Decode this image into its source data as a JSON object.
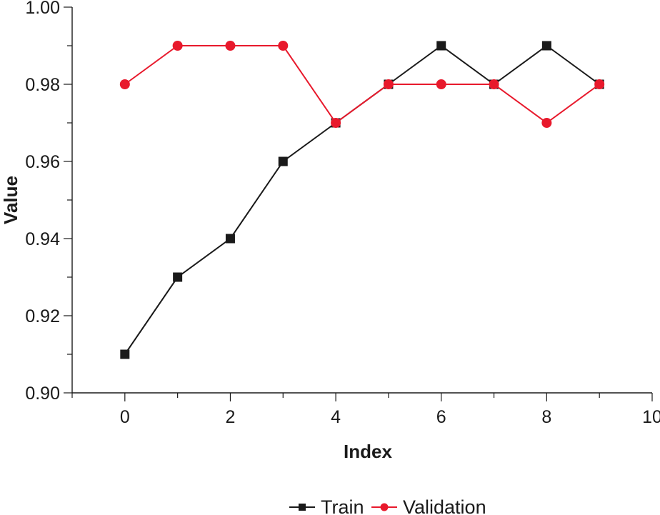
{
  "chart_data": {
    "type": "line",
    "title": "",
    "xlabel": "Index",
    "ylabel": "Value",
    "xlim": [
      -1,
      10
    ],
    "ylim": [
      0.9,
      1.0
    ],
    "x_ticks": [
      0,
      2,
      4,
      6,
      8,
      10
    ],
    "x_tick_labels": [
      "0",
      "2",
      "4",
      "6",
      "8",
      "10"
    ],
    "y_ticks": [
      0.9,
      0.92,
      0.94,
      0.96,
      0.98,
      1.0
    ],
    "y_tick_labels": [
      "0.90",
      "0.92",
      "0.94",
      "0.96",
      "0.98",
      "1.00"
    ],
    "grid": false,
    "legend_position": "bottom",
    "x": [
      0,
      1,
      2,
      3,
      4,
      5,
      6,
      7,
      8,
      9
    ],
    "series": [
      {
        "name": "Train",
        "color": "#1a1a1a",
        "marker": "square",
        "values": [
          0.91,
          0.93,
          0.94,
          0.96,
          0.97,
          0.98,
          0.99,
          0.98,
          0.99,
          0.98
        ]
      },
      {
        "name": "Validation",
        "color": "#e8192c",
        "marker": "circle",
        "values": [
          0.98,
          0.99,
          0.99,
          0.99,
          0.97,
          0.98,
          0.98,
          0.98,
          0.97,
          0.98
        ]
      }
    ]
  }
}
